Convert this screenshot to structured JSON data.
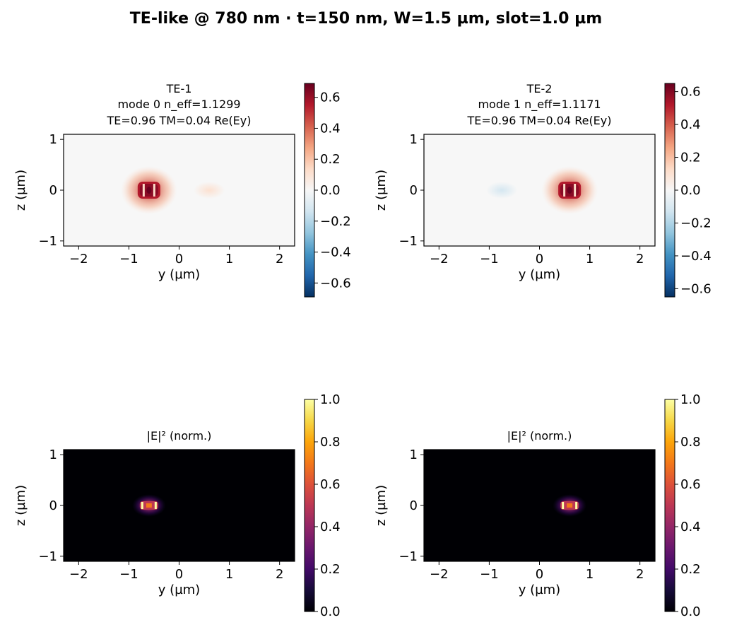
{
  "suptitle": "TE-like @ 780 nm · t=150 nm, W=1.5 µm, slot=1.0 µm",
  "chart_data": [
    {
      "type": "heatmap",
      "field": "Re(Ey)",
      "title_lines": [
        "TE-1",
        "mode 0  n_eff=1.1299",
        "TE=0.96  TM=0.04  Re(Ey)"
      ],
      "xlabel": "y (µm)",
      "ylabel": "z (µm)",
      "xlim": [
        -2.3,
        2.3
      ],
      "ylim": [
        -1.1,
        1.1
      ],
      "xticks": [
        -2,
        -1,
        0,
        1,
        2
      ],
      "xtick_labels": [
        "−2",
        "−1",
        "0",
        "1",
        "2"
      ],
      "yticks": [
        -1,
        0,
        1
      ],
      "ytick_labels": [
        "−1",
        "0",
        "1"
      ],
      "colormap": "RdBu_r",
      "clim": [
        -0.69,
        0.69
      ],
      "colorbar_ticks": [
        -0.6,
        -0.4,
        -0.2,
        0.0,
        0.2,
        0.4,
        0.6
      ],
      "colorbar_labels": [
        "−0.6",
        "−0.4",
        "−0.2",
        "0.0",
        "0.2",
        "0.4",
        "0.6"
      ],
      "dominant_lobe": {
        "y": -0.6,
        "z": 0,
        "peak": 0.69
      },
      "weak_lobe": {
        "y": 0.6,
        "z": 0,
        "peak": 0.03
      }
    },
    {
      "type": "heatmap",
      "field": "Re(Ey)",
      "title_lines": [
        "TE-2",
        "mode 1  n_eff=1.1171",
        "TE=0.96  TM=0.04  Re(Ey)"
      ],
      "xlabel": "y (µm)",
      "ylabel": "z (µm)",
      "xlim": [
        -2.3,
        2.3
      ],
      "ylim": [
        -1.1,
        1.1
      ],
      "xticks": [
        -2,
        -1,
        0,
        1,
        2
      ],
      "xtick_labels": [
        "−2",
        "−1",
        "0",
        "1",
        "2"
      ],
      "yticks": [
        -1,
        0,
        1
      ],
      "ytick_labels": [
        "−1",
        "0",
        "1"
      ],
      "colormap": "RdBu_r",
      "clim": [
        -0.65,
        0.65
      ],
      "colorbar_ticks": [
        -0.6,
        -0.4,
        -0.2,
        0.0,
        0.2,
        0.4,
        0.6
      ],
      "colorbar_labels": [
        "−0.6",
        "−0.4",
        "−0.2",
        "0.0",
        "0.2",
        "0.4",
        "0.6"
      ],
      "dominant_lobe": {
        "y": 0.6,
        "z": 0,
        "peak": 0.65
      },
      "weak_lobe": {
        "y": -0.75,
        "z": 0,
        "peak": -0.04
      }
    },
    {
      "type": "heatmap",
      "field": "|E|^2",
      "title_lines": [
        "|E|² (norm.)"
      ],
      "xlabel": "y (µm)",
      "ylabel": "z (µm)",
      "xlim": [
        -2.3,
        2.3
      ],
      "ylim": [
        -1.1,
        1.1
      ],
      "xticks": [
        -2,
        -1,
        0,
        1,
        2
      ],
      "xtick_labels": [
        "−2",
        "−1",
        "0",
        "1",
        "2"
      ],
      "yticks": [
        -1,
        0,
        1
      ],
      "ytick_labels": [
        "−1",
        "0",
        "1"
      ],
      "colormap": "inferno",
      "clim": [
        0,
        1
      ],
      "colorbar_ticks": [
        0.0,
        0.2,
        0.4,
        0.6,
        0.8,
        1.0
      ],
      "colorbar_labels": [
        "0.0",
        "0.2",
        "0.4",
        "0.6",
        "0.8",
        "1.0"
      ],
      "dominant_lobe": {
        "y": -0.6,
        "z": 0,
        "peak": 1.0
      }
    },
    {
      "type": "heatmap",
      "field": "|E|^2",
      "title_lines": [
        "|E|² (norm.)"
      ],
      "xlabel": "y (µm)",
      "ylabel": "z (µm)",
      "xlim": [
        -2.3,
        2.3
      ],
      "ylim": [
        -1.1,
        1.1
      ],
      "xticks": [
        -2,
        -1,
        0,
        1,
        2
      ],
      "xtick_labels": [
        "−2",
        "−1",
        "0",
        "1",
        "2"
      ],
      "yticks": [
        -1,
        0,
        1
      ],
      "ytick_labels": [
        "−1",
        "0",
        "1"
      ],
      "colormap": "inferno",
      "clim": [
        0,
        1
      ],
      "colorbar_ticks": [
        0.0,
        0.2,
        0.4,
        0.6,
        0.8,
        1.0
      ],
      "colorbar_labels": [
        "0.0",
        "0.2",
        "0.4",
        "0.6",
        "0.8",
        "1.0"
      ],
      "dominant_lobe": {
        "y": 0.6,
        "z": 0,
        "peak": 1.0
      }
    }
  ]
}
